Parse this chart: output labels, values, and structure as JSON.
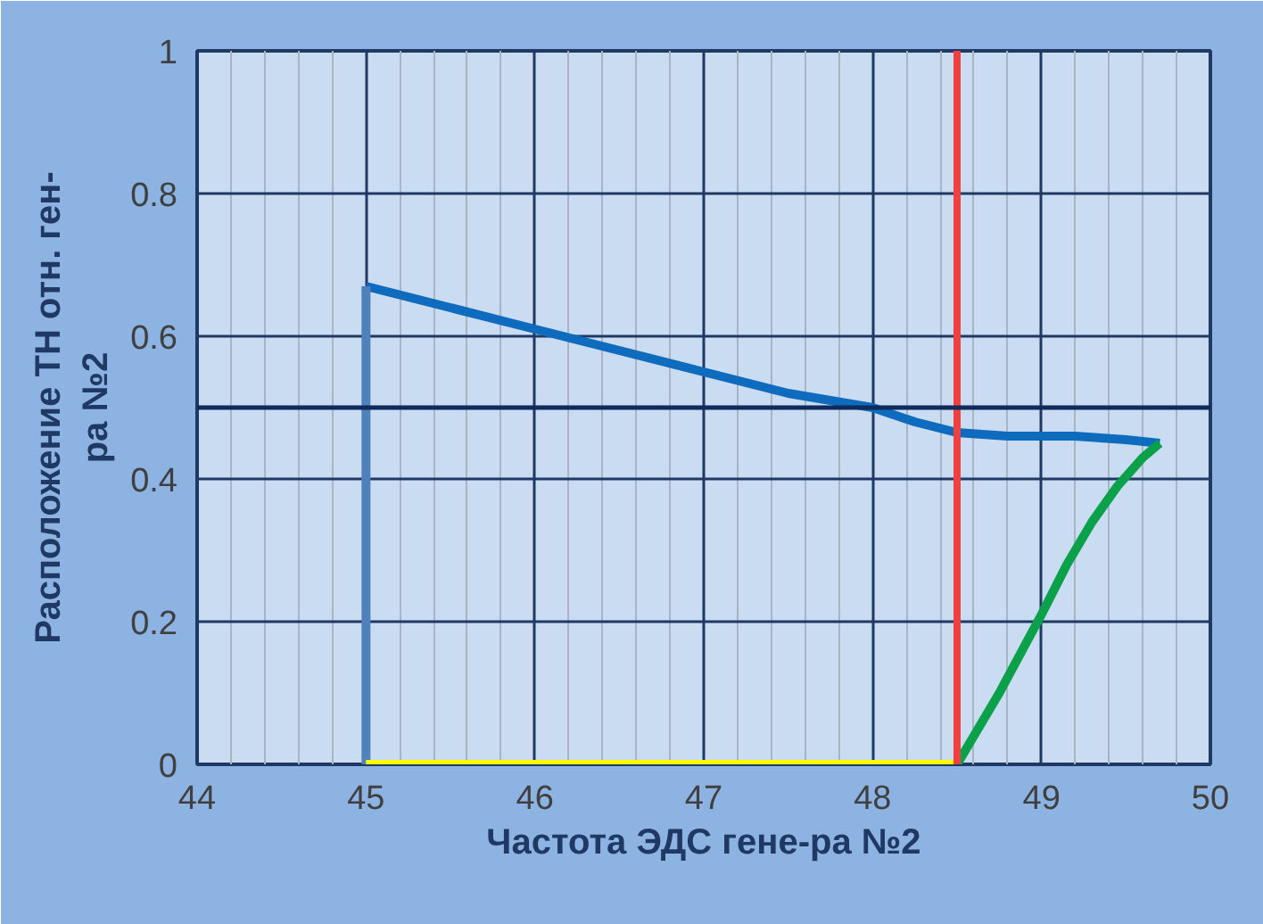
{
  "chart_data": {
    "type": "line",
    "xlabel": "Частота ЭДС гене-ра №2",
    "ylabel": "Расположение ТН отн. ген-\nра №2",
    "xlim": [
      44,
      50
    ],
    "xticks": [
      44,
      45,
      46,
      47,
      48,
      49,
      50
    ],
    "ylim": [
      0,
      1
    ],
    "yticks": [
      0,
      0.2,
      0.4,
      0.6,
      0.8,
      1
    ],
    "grid": true,
    "marker": "none",
    "line_style": "solid",
    "series": [
      {
        "color": "#0e6bbd",
        "x": [
          45,
          45.5,
          46,
          46.5,
          47,
          47.5,
          48,
          48.25,
          48.5,
          48.8,
          49.2,
          49.5,
          49.7
        ],
        "values": [
          0.67,
          0.64,
          0.61,
          0.58,
          0.55,
          0.52,
          0.5,
          0.48,
          0.465,
          0.46,
          0.46,
          0.455,
          0.45
        ]
      },
      {
        "color": "#4f81bd",
        "x": [
          45,
          45
        ],
        "values": [
          0,
          0.67
        ]
      },
      {
        "color": "#ffff00",
        "x": [
          45,
          48.5
        ],
        "values": [
          0,
          0
        ]
      },
      {
        "color": "#0aa14a",
        "x": [
          48.5,
          48.75,
          49,
          49.15,
          49.3,
          49.45,
          49.6,
          49.7
        ],
        "values": [
          0,
          0.1,
          0.21,
          0.28,
          0.34,
          0.39,
          0.43,
          0.45
        ]
      }
    ],
    "ref_lines": [
      {
        "axis": "x",
        "value": 48.5,
        "color": "#f04040"
      },
      {
        "axis": "y",
        "value": 0.5,
        "color": "#0f2b5b"
      }
    ]
  }
}
